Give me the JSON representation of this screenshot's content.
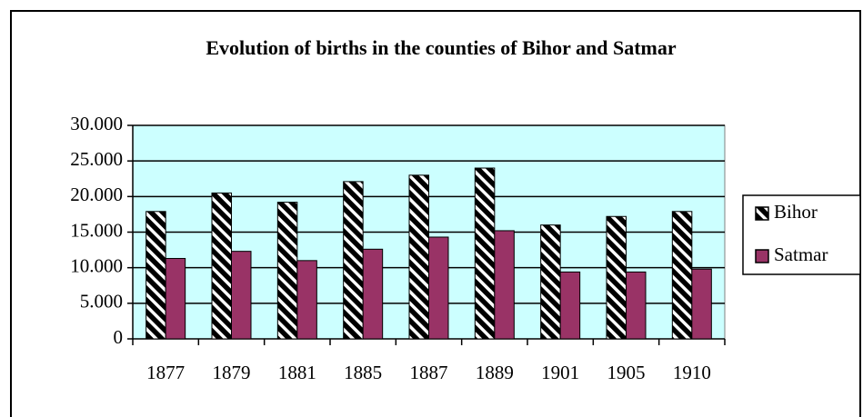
{
  "chart_data": {
    "type": "bar",
    "title": "Evolution of births in the counties of Bihor and Satmar",
    "categories": [
      "1877",
      "1879",
      "1881",
      "1885",
      "1887",
      "1889",
      "1901",
      "1905",
      "1910"
    ],
    "series": [
      {
        "name": "Bihor",
        "color": "#000000",
        "values": [
          17900,
          20500,
          19200,
          22100,
          23000,
          24000,
          16000,
          17200,
          17900
        ]
      },
      {
        "name": "Satmar",
        "color": "#993366",
        "values": [
          11300,
          12300,
          11000,
          12600,
          14300,
          15200,
          9400,
          9400,
          9800
        ]
      }
    ],
    "ylim": [
      0,
      30000
    ],
    "yticks": [
      0,
      {
        "value": 5000,
        "label": "5.000"
      },
      {
        "value": 10000,
        "label": "10.000"
      },
      {
        "value": 15000,
        "label": "15.000"
      },
      {
        "value": 20000,
        "label": "20.000"
      },
      {
        "value": 25000,
        "label": "25.000"
      },
      {
        "value": 30000,
        "label": "30.000"
      }
    ],
    "grid": true
  }
}
